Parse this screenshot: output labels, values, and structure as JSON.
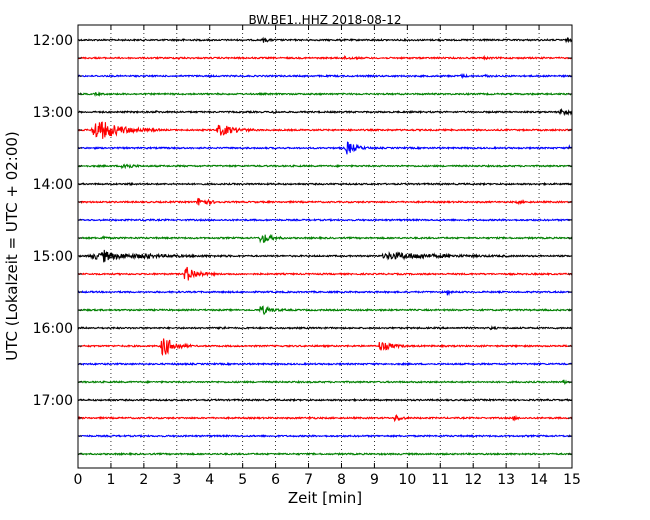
{
  "chart_data": {
    "type": "line",
    "title": "BW.BE1..HHZ 2018-08-12",
    "xlabel": "Zeit  [min]",
    "ylabel": "UTC (Lokalzeit = UTC + 02:00)",
    "xlim": [
      0,
      15
    ],
    "x_ticks": [
      "0",
      "1",
      "2",
      "3",
      "4",
      "5",
      "6",
      "7",
      "8",
      "9",
      "10",
      "11",
      "12",
      "13",
      "14",
      "15"
    ],
    "y_ticks": [
      "12:00",
      "13:00",
      "14:00",
      "15:00",
      "16:00",
      "17:00"
    ],
    "grid": "vertical dotted at each minute",
    "trace_interval_minutes": 15,
    "colors": [
      "#000000",
      "#ff0000",
      "#0000ff",
      "#008000"
    ],
    "series": [
      {
        "time": "12:00",
        "events": [
          {
            "x": 5.6,
            "a": 0.35,
            "d": 0.25
          },
          {
            "x": 3.1,
            "a": 0.15,
            "d": 0.15
          },
          {
            "x": 14.8,
            "a": 0.25,
            "d": 0.3
          }
        ]
      },
      {
        "time": "12:15",
        "events": [
          {
            "x": 8.0,
            "a": 0.2,
            "d": 0.5
          },
          {
            "x": 3.0,
            "a": 0.12,
            "d": 0.2
          },
          {
            "x": 12.3,
            "a": 0.12,
            "d": 0.3
          }
        ]
      },
      {
        "time": "12:30",
        "events": [
          {
            "x": 11.6,
            "a": 0.18,
            "d": 0.3
          },
          {
            "x": 12.3,
            "a": 0.15,
            "d": 0.3
          }
        ]
      },
      {
        "time": "12:45",
        "events": [
          {
            "x": 0.5,
            "a": 0.12,
            "d": 0.3
          }
        ]
      },
      {
        "time": "13:00",
        "events": [
          {
            "x": 5.9,
            "a": 0.35,
            "d": 0.15
          },
          {
            "x": 14.6,
            "a": 0.45,
            "d": 0.6
          },
          {
            "x": 2.3,
            "a": 0.12,
            "d": 0.2
          }
        ]
      },
      {
        "time": "13:15",
        "events": [
          {
            "x": 0.4,
            "a": 1.6,
            "d": 1.3
          },
          {
            "x": 4.2,
            "a": 0.9,
            "d": 0.8
          }
        ]
      },
      {
        "time": "13:30",
        "events": [
          {
            "x": 8.1,
            "a": 1.0,
            "d": 0.5
          },
          {
            "x": 14.9,
            "a": 0.3,
            "d": 0.1
          }
        ]
      },
      {
        "time": "13:45",
        "events": [
          {
            "x": 1.3,
            "a": 0.6,
            "d": 0.4
          }
        ]
      },
      {
        "time": "14:00",
        "events": [
          {
            "x": 1.5,
            "a": 0.12,
            "d": 0.2
          }
        ]
      },
      {
        "time": "14:15",
        "events": [
          {
            "x": 3.6,
            "a": 0.7,
            "d": 0.5
          },
          {
            "x": 13.3,
            "a": 0.18,
            "d": 0.3
          }
        ]
      },
      {
        "time": "14:30",
        "events": [
          {
            "x": 2.0,
            "a": 0.1,
            "d": 0.2
          }
        ]
      },
      {
        "time": "14:45",
        "events": [
          {
            "x": 5.5,
            "a": 0.8,
            "d": 0.5
          },
          {
            "x": 0.7,
            "a": 0.3,
            "d": 0.2
          }
        ]
      },
      {
        "time": "15:00",
        "events": [
          {
            "x": 0.3,
            "a": 0.5,
            "d": 2.8
          },
          {
            "x": 9.2,
            "a": 0.5,
            "d": 2.5
          },
          {
            "x": 0.75,
            "a": 0.6,
            "d": 0.2
          },
          {
            "x": 2.0,
            "a": 0.3,
            "d": 0.2
          }
        ]
      },
      {
        "time": "15:15",
        "events": [
          {
            "x": 3.2,
            "a": 1.2,
            "d": 0.6
          }
        ]
      },
      {
        "time": "15:30",
        "events": [
          {
            "x": 11.2,
            "a": 0.6,
            "d": 0.1
          }
        ]
      },
      {
        "time": "15:45",
        "events": [
          {
            "x": 5.5,
            "a": 0.7,
            "d": 0.5
          }
        ]
      },
      {
        "time": "16:00",
        "events": [
          {
            "x": 4.3,
            "a": 0.3,
            "d": 0.2
          },
          {
            "x": 12.5,
            "a": 0.18,
            "d": 0.2
          }
        ]
      },
      {
        "time": "16:15",
        "events": [
          {
            "x": 2.5,
            "a": 1.6,
            "d": 0.6
          },
          {
            "x": 9.1,
            "a": 0.8,
            "d": 0.6
          }
        ]
      },
      {
        "time": "16:30",
        "events": []
      },
      {
        "time": "16:45",
        "events": [
          {
            "x": 14.7,
            "a": 0.3,
            "d": 0.2
          }
        ]
      },
      {
        "time": "17:00",
        "events": []
      },
      {
        "time": "17:15",
        "events": [
          {
            "x": 9.6,
            "a": 0.6,
            "d": 0.3
          },
          {
            "x": 13.2,
            "a": 0.4,
            "d": 0.15
          },
          {
            "x": 7.0,
            "a": 0.15,
            "d": 0.2
          }
        ]
      },
      {
        "time": "17:30",
        "events": []
      },
      {
        "time": "17:45",
        "events": []
      }
    ]
  }
}
